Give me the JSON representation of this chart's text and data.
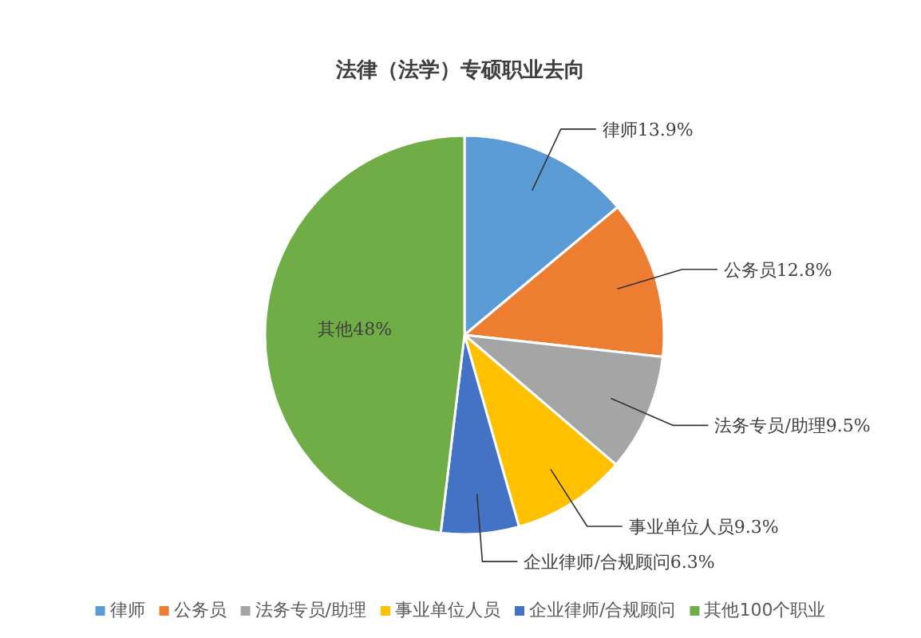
{
  "chart_data": {
    "type": "pie",
    "title": "法律（法学）专硕职业去向",
    "categories": [
      "律师",
      "公务员",
      "法务专员/助理",
      "事业单位人员",
      "企业律师/合规顾问",
      "其他100个职业"
    ],
    "values": [
      13.9,
      12.8,
      9.5,
      9.3,
      6.3,
      48
    ],
    "colors": [
      "#5b9bd5",
      "#ed7d31",
      "#a5a5a5",
      "#ffc000",
      "#4472c4",
      "#70ad47"
    ],
    "value_labels": [
      "律师13.9%",
      "公务员12.8%",
      "法务专员/助理9.5%",
      "事业单位人员9.3%",
      "企业律师/合规顾问6.3%",
      "其他48%"
    ],
    "legend": "bottom"
  }
}
